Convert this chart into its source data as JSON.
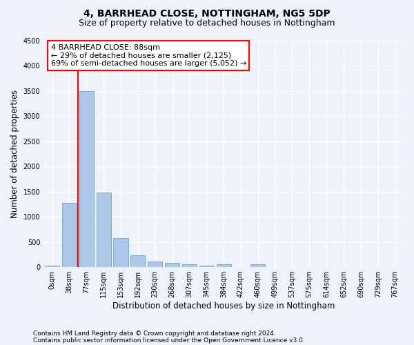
{
  "title1": "4, BARRHEAD CLOSE, NOTTINGHAM, NG5 5DP",
  "title2": "Size of property relative to detached houses in Nottingham",
  "xlabel": "Distribution of detached houses by size in Nottingham",
  "ylabel": "Number of detached properties",
  "footnote1": "Contains HM Land Registry data © Crown copyright and database right 2024.",
  "footnote2": "Contains public sector information licensed under the Open Government Licence v3.0.",
  "bar_labels": [
    "0sqm",
    "38sqm",
    "77sqm",
    "115sqm",
    "153sqm",
    "192sqm",
    "230sqm",
    "268sqm",
    "307sqm",
    "345sqm",
    "384sqm",
    "422sqm",
    "460sqm",
    "499sqm",
    "537sqm",
    "575sqm",
    "614sqm",
    "652sqm",
    "690sqm",
    "729sqm",
    "767sqm"
  ],
  "bar_values": [
    30,
    1275,
    3500,
    1480,
    580,
    240,
    115,
    85,
    55,
    35,
    55,
    0,
    55,
    0,
    0,
    0,
    0,
    0,
    0,
    0,
    0
  ],
  "bar_color": "#aec6e8",
  "bar_edge_color": "#7aaacf",
  "vline_x": 1.5,
  "vline_color": "red",
  "annotation_text": "4 BARRHEAD CLOSE: 88sqm\n← 29% of detached houses are smaller (2,125)\n69% of semi-detached houses are larger (5,052) →",
  "annotation_box_color": "white",
  "annotation_box_edge_color": "red",
  "ylim": [
    0,
    4500
  ],
  "yticks": [
    0,
    500,
    1000,
    1500,
    2000,
    2500,
    3000,
    3500,
    4000,
    4500
  ],
  "background_color": "#eef2fb",
  "grid_color": "#ffffff",
  "title1_fontsize": 10,
  "title2_fontsize": 9,
  "xlabel_fontsize": 8.5,
  "ylabel_fontsize": 8.5,
  "annot_fontsize": 8,
  "tick_fontsize": 7,
  "footnote_fontsize": 6.5
}
